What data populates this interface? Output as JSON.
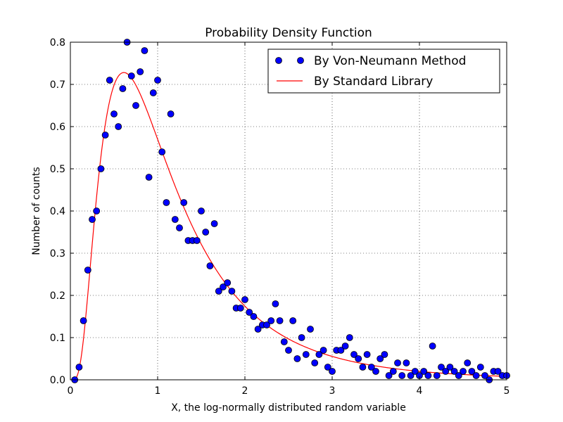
{
  "chart_data": {
    "type": "scatter",
    "title": "Probability Density Function",
    "xlabel": "X, the log-normally distributed random variable",
    "ylabel": "Number of counts",
    "xlim": [
      0,
      5
    ],
    "ylim": [
      0,
      0.8
    ],
    "xticks": [
      "0",
      "1",
      "2",
      "3",
      "4",
      "5"
    ],
    "yticks": [
      "0.0",
      "0.1",
      "0.2",
      "0.3",
      "0.4",
      "0.5",
      "0.6",
      "0.7",
      "0.8"
    ],
    "grid": true,
    "legend_position": "top-right",
    "series": [
      {
        "name": "By Von-Neumann Method",
        "kind": "markers",
        "color": "#0000ff",
        "x": [
          0.05,
          0.1,
          0.15,
          0.2,
          0.25,
          0.3,
          0.35,
          0.4,
          0.45,
          0.5,
          0.55,
          0.6,
          0.65,
          0.7,
          0.75,
          0.8,
          0.85,
          0.9,
          0.95,
          1.0,
          1.05,
          1.1,
          1.15,
          1.2,
          1.25,
          1.3,
          1.35,
          1.4,
          1.45,
          1.5,
          1.55,
          1.6,
          1.65,
          1.7,
          1.75,
          1.8,
          1.85,
          1.9,
          1.95,
          2.0,
          2.05,
          2.1,
          2.15,
          2.2,
          2.25,
          2.3,
          2.35,
          2.4,
          2.45,
          2.5,
          2.55,
          2.6,
          2.65,
          2.7,
          2.75,
          2.8,
          2.85,
          2.9,
          2.95,
          3.0,
          3.05,
          3.1,
          3.15,
          3.2,
          3.25,
          3.3,
          3.35,
          3.4,
          3.45,
          3.5,
          3.55,
          3.6,
          3.65,
          3.7,
          3.75,
          3.8,
          3.85,
          3.9,
          3.95,
          4.0,
          4.05,
          4.1,
          4.15,
          4.2,
          4.25,
          4.3,
          4.35,
          4.4,
          4.45,
          4.5,
          4.55,
          4.6,
          4.65,
          4.7,
          4.75,
          4.8,
          4.85,
          4.9,
          4.95,
          5.0
        ],
        "y": [
          0.0,
          0.03,
          0.14,
          0.26,
          0.38,
          0.4,
          0.5,
          0.58,
          0.71,
          0.63,
          0.6,
          0.69,
          0.8,
          0.72,
          0.65,
          0.73,
          0.78,
          0.48,
          0.68,
          0.71,
          0.54,
          0.42,
          0.63,
          0.38,
          0.36,
          0.42,
          0.33,
          0.33,
          0.33,
          0.4,
          0.35,
          0.27,
          0.37,
          0.21,
          0.22,
          0.23,
          0.21,
          0.17,
          0.17,
          0.19,
          0.16,
          0.15,
          0.12,
          0.13,
          0.13,
          0.14,
          0.18,
          0.14,
          0.09,
          0.07,
          0.14,
          0.05,
          0.1,
          0.06,
          0.12,
          0.04,
          0.06,
          0.07,
          0.03,
          0.02,
          0.07,
          0.07,
          0.08,
          0.1,
          0.06,
          0.05,
          0.03,
          0.06,
          0.03,
          0.02,
          0.05,
          0.06,
          0.01,
          0.02,
          0.04,
          0.01,
          0.04,
          0.01,
          0.02,
          0.01,
          0.02,
          0.01,
          0.08,
          0.01,
          0.03,
          0.02,
          0.03,
          0.02,
          0.01,
          0.02,
          0.04,
          0.02,
          0.01,
          0.03,
          0.01,
          0.0,
          0.02,
          0.02,
          0.01,
          0.01
        ]
      },
      {
        "name": "By Standard Library",
        "kind": "line",
        "color": "#ff0000",
        "mu": 0,
        "sigma": 0.7
      }
    ]
  }
}
